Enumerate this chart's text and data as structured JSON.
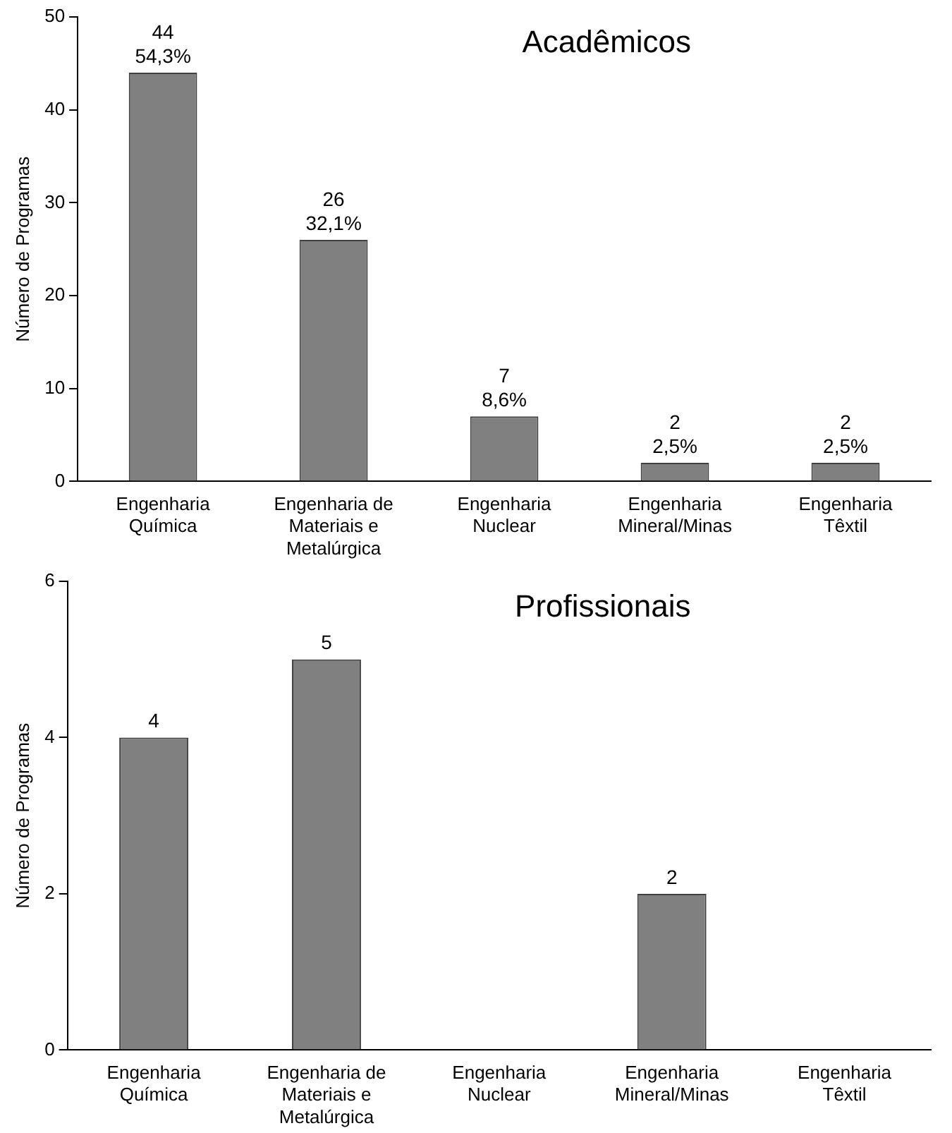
{
  "chart_data": [
    {
      "type": "bar",
      "title": "Acadêmicos",
      "ylabel": "Número de Programas",
      "categories": [
        "Engenharia\nQuímica",
        "Engenharia de\nMateriais e\nMetalúrgica",
        "Engenharia\nNuclear",
        "Engenharia\nMineral/Minas",
        "Engenharia\nTêxtil"
      ],
      "values": [
        44,
        26,
        7,
        2,
        2
      ],
      "value_labels": [
        "44\n54,3%",
        "26\n32,1%",
        "7\n8,6%",
        "2\n2,5%",
        "2\n2,5%"
      ],
      "color": "#808080",
      "ylim": [
        0,
        50
      ],
      "yticks": [
        0,
        10,
        20,
        30,
        40,
        50
      ],
      "grid": false,
      "legend": false
    },
    {
      "type": "bar",
      "title": "Profissionais",
      "ylabel": "Número de Programas",
      "categories": [
        "Engenharia\nQuímica",
        "Engenharia de\nMateriais e\nMetalúrgica",
        "Engenharia\nNuclear",
        "Engenharia\nMineral/Minas",
        "Engenharia\nTêxtil"
      ],
      "values": [
        4,
        5,
        0,
        2,
        0
      ],
      "value_labels": [
        "4",
        "5",
        null,
        "2",
        null
      ],
      "color": "#808080",
      "ylim": [
        0,
        6
      ],
      "yticks": [
        0,
        2,
        4,
        6
      ],
      "grid": false,
      "legend": false
    }
  ]
}
